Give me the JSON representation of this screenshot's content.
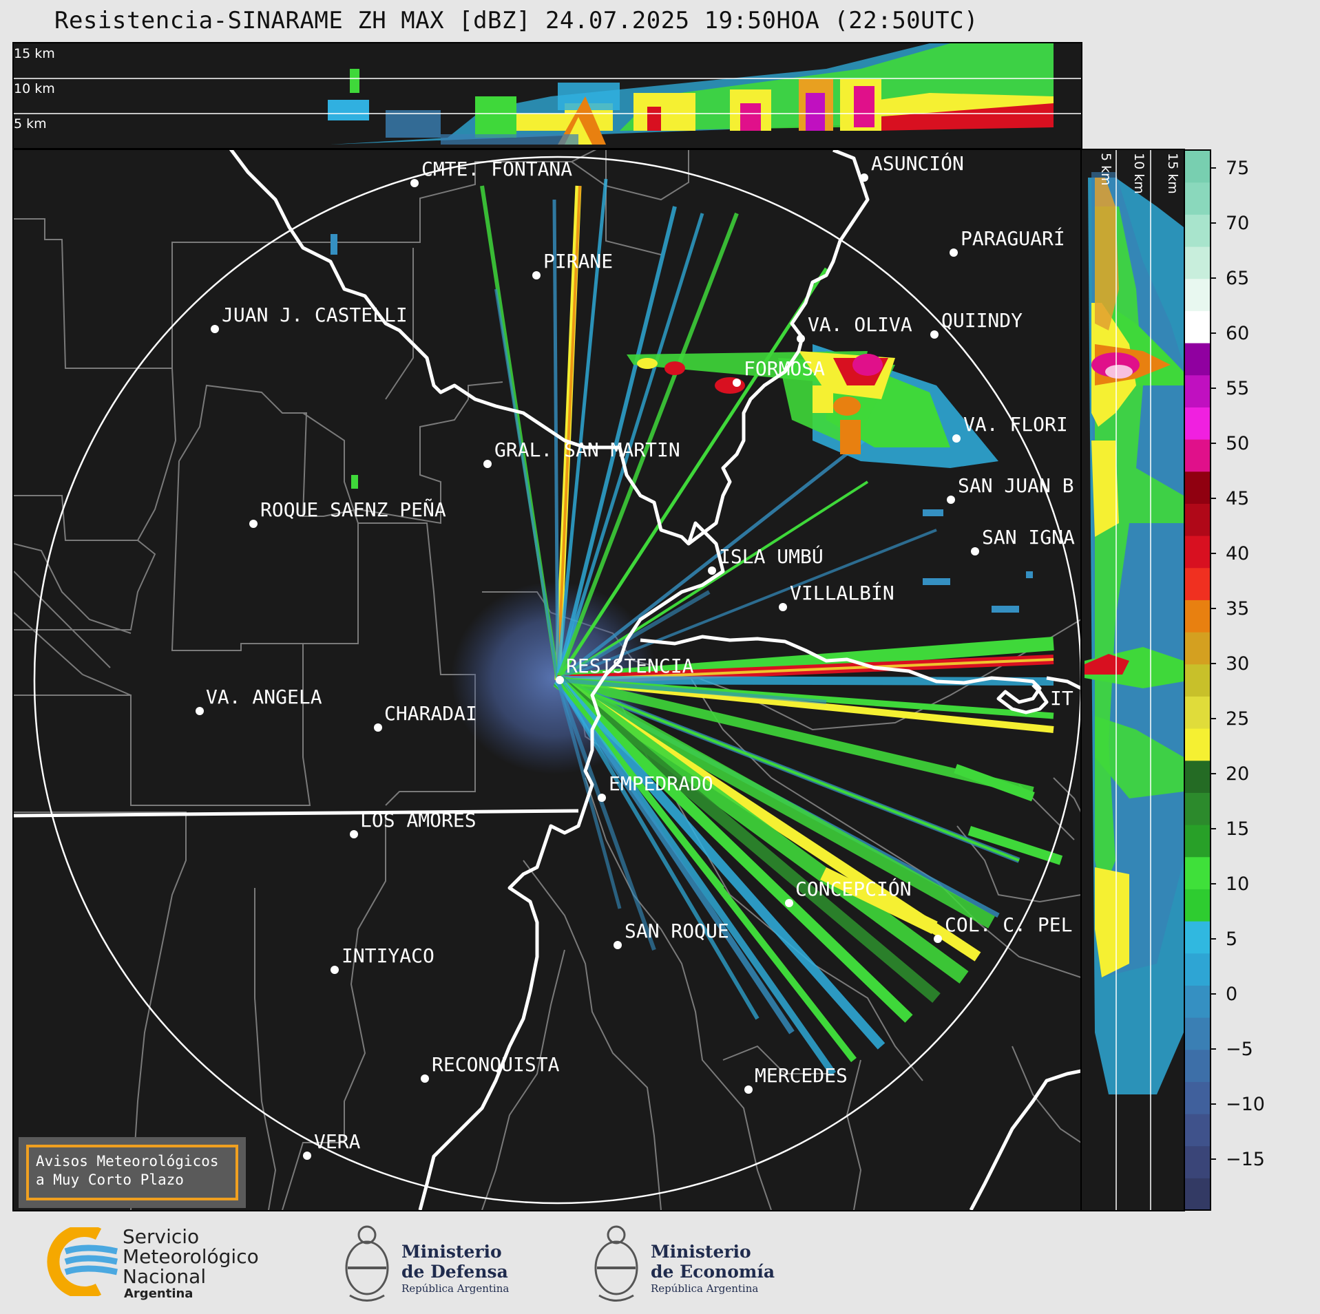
{
  "title": "Resistencia-SINARAME ZH MAX [dBZ] 24.07.2025 19:50HOA (22:50UTC)",
  "top_panel": {
    "height_labels": [
      "15 km",
      "10 km",
      "5 km"
    ]
  },
  "side_panel": {
    "height_labels": [
      "5 km",
      "10 km",
      "15 km"
    ]
  },
  "map": {
    "cities": [
      {
        "name": "CMTE. FONTANA"
      },
      {
        "name": "ASUNCIÓN"
      },
      {
        "name": "PARAGUARÍ"
      },
      {
        "name": "PIRANE"
      },
      {
        "name": "JUAN J. CASTELLI"
      },
      {
        "name": "VA. OLIVA"
      },
      {
        "name": "QUIINDY"
      },
      {
        "name": "FORMOSA"
      },
      {
        "name": "VA. FLORI"
      },
      {
        "name": "GRAL. SAN MARTIN"
      },
      {
        "name": "SAN JUAN B"
      },
      {
        "name": "ROQUE SAENZ PEÑA"
      },
      {
        "name": "SAN IGNA"
      },
      {
        "name": "ISLA UMBÚ"
      },
      {
        "name": "VILLALBÍN"
      },
      {
        "name": "RESISTENCIA"
      },
      {
        "name": "VA. ANGELA"
      },
      {
        "name": "CHARADAI"
      },
      {
        "name": "IT"
      },
      {
        "name": "EMPEDRADO"
      },
      {
        "name": "LOS AMORES"
      },
      {
        "name": "CONCEPCIÓN"
      },
      {
        "name": "COL. C. PEL"
      },
      {
        "name": "SAN ROQUE"
      },
      {
        "name": "INTIYACO"
      },
      {
        "name": "RECONQUISTA"
      },
      {
        "name": "MERCEDES"
      },
      {
        "name": "VERA"
      }
    ]
  },
  "colorbar": {
    "unit": "dBZ",
    "ticks": [
      "75",
      "70",
      "65",
      "60",
      "55",
      "50",
      "45",
      "40",
      "35",
      "30",
      "25",
      "20",
      "15",
      "10",
      "5",
      "0",
      "−5",
      "−10",
      "−15"
    ],
    "colors": [
      "#333a64",
      "#3a4578",
      "#3f528b",
      "#40609c",
      "#3d6fa8",
      "#3a7fb4",
      "#3590c2",
      "#2ea5d4",
      "#30b8e0",
      "#2ecc30",
      "#3fe03a",
      "#28a028",
      "#2c8a2c",
      "#246b24",
      "#f5f032",
      "#e0dc3a",
      "#c8c02a",
      "#d4a020",
      "#e88010",
      "#f03020",
      "#d81020",
      "#b00818",
      "#900010",
      "#e0108a",
      "#f020e0",
      "#c010c0",
      "#9000a0",
      "#ffffff",
      "#e8f8f0",
      "#c8eedc",
      "#a8e4cc",
      "#8ad8bc",
      "#78cfb0"
    ]
  },
  "notice": {
    "line1": "Avisos Meteorológicos",
    "line2": "a Muy Corto Plazo"
  },
  "logos": {
    "smn": {
      "line1": "Servicio",
      "line2": "Meteorológico",
      "line3": "Nacional",
      "line4": "Argentina"
    },
    "defensa": {
      "line1": "Ministerio",
      "line2": "de Defensa",
      "line3": "República Argentina"
    },
    "economia": {
      "line1": "Ministerio",
      "line2": "de Economía",
      "line3": "República Argentina"
    }
  }
}
